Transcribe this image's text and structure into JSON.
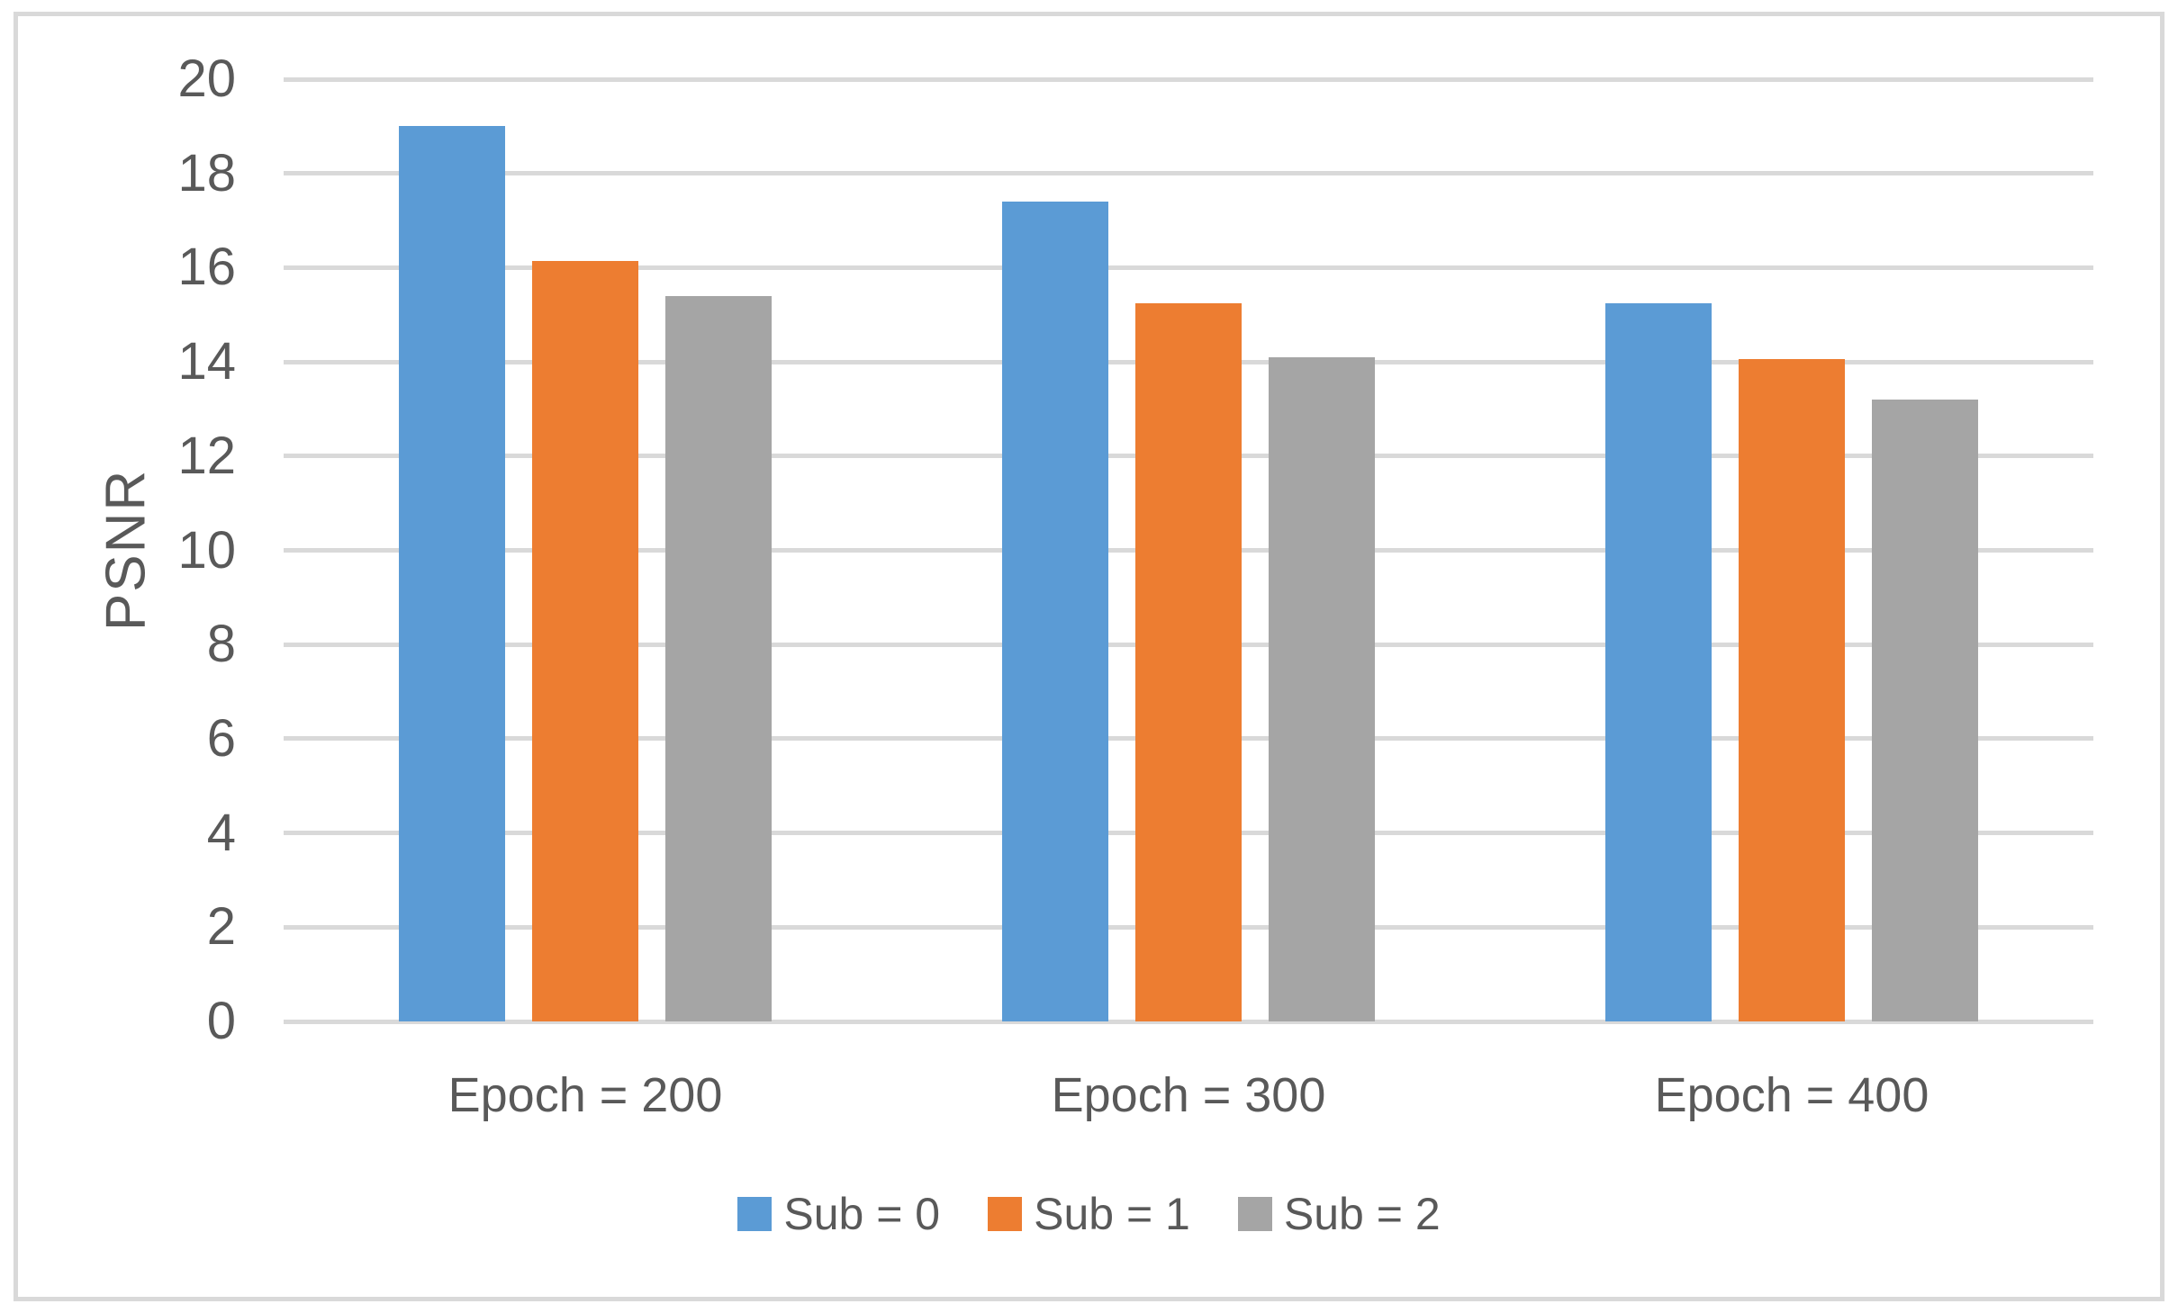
{
  "chart_data": {
    "type": "bar",
    "title": "",
    "ylabel": "PSNR",
    "xlabel": "",
    "categories": [
      "Epoch = 200",
      "Epoch = 300",
      "Epoch = 400"
    ],
    "series": [
      {
        "name": "Sub = 0",
        "color": "#5B9BD5",
        "values": [
          19.0,
          17.4,
          15.25
        ]
      },
      {
        "name": "Sub = 1",
        "color": "#ED7D31",
        "values": [
          16.15,
          15.25,
          14.05
        ]
      },
      {
        "name": "Sub = 2",
        "color": "#A5A5A5",
        "values": [
          15.4,
          14.1,
          13.2
        ]
      }
    ],
    "ylim": [
      0,
      20
    ],
    "yticks": [
      0,
      2,
      4,
      6,
      8,
      10,
      12,
      14,
      16,
      18,
      20
    ],
    "grid": true,
    "legend_position": "bottom",
    "colors": {
      "text": "#595959",
      "gridline": "#D9D9D9",
      "figure_border": "#D9D9D9",
      "background": "#FFFFFF"
    }
  }
}
